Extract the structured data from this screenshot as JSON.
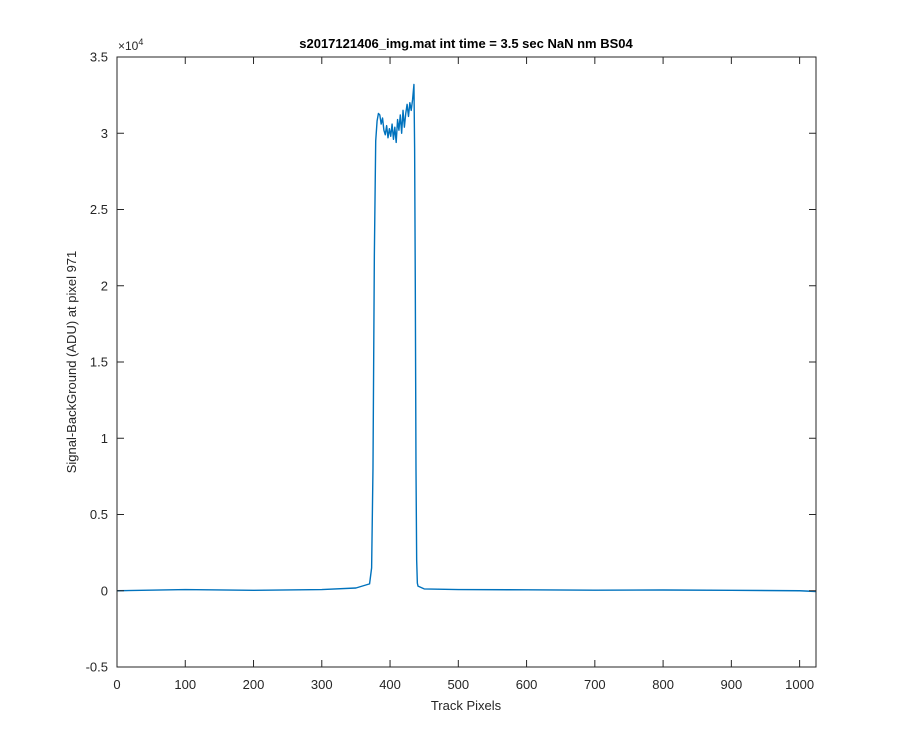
{
  "chart_data": {
    "type": "line",
    "title": "s2017121406_img.mat int time = 3.5 sec  NaN nm BS04",
    "xlabel": "Track Pixels",
    "ylabel": "Signal-BackGround (ADU) at pixel 971",
    "xlim": [
      0,
      1024
    ],
    "ylim": [
      -5000,
      35000
    ],
    "x_ticks": [
      0,
      100,
      200,
      300,
      400,
      500,
      600,
      700,
      800,
      900,
      1000
    ],
    "x_tick_labels": [
      "0",
      "100",
      "200",
      "300",
      "400",
      "500",
      "600",
      "700",
      "800",
      "900",
      "1000"
    ],
    "y_ticks": [
      -5000,
      0,
      5000,
      10000,
      15000,
      20000,
      25000,
      30000,
      35000
    ],
    "y_tick_labels": [
      "-0.5",
      "0",
      "0.5",
      "1",
      "1.5",
      "2",
      "2.5",
      "3",
      "3.5"
    ],
    "y_exponent": {
      "base": "×10",
      "power": "4"
    },
    "grid": false,
    "box": true,
    "series": [
      {
        "color": "#0072bd",
        "x": [
          0,
          100,
          200,
          300,
          350,
          370,
          373,
          375,
          377,
          379,
          381,
          383,
          385,
          387,
          389,
          391,
          393,
          395,
          397,
          399,
          401,
          403,
          405,
          407,
          409,
          411,
          413,
          415,
          417,
          419,
          421,
          423,
          425,
          427,
          429,
          431,
          433,
          435,
          436,
          437,
          438,
          439,
          440,
          441,
          450,
          500,
          600,
          700,
          800,
          900,
          1000,
          1024
        ],
        "y": [
          0,
          80,
          30,
          80,
          180,
          450,
          1500,
          8000,
          22000,
          29500,
          30800,
          31300,
          31200,
          30600,
          31000,
          30200,
          29900,
          30500,
          29700,
          30300,
          29800,
          30600,
          29600,
          30400,
          29400,
          30900,
          30200,
          31200,
          30000,
          31500,
          30400,
          31300,
          31900,
          31100,
          32000,
          31500,
          32200,
          33200,
          29000,
          20000,
          8000,
          2000,
          500,
          300,
          120,
          80,
          60,
          40,
          50,
          30,
          0,
          -50
        ]
      }
    ]
  }
}
